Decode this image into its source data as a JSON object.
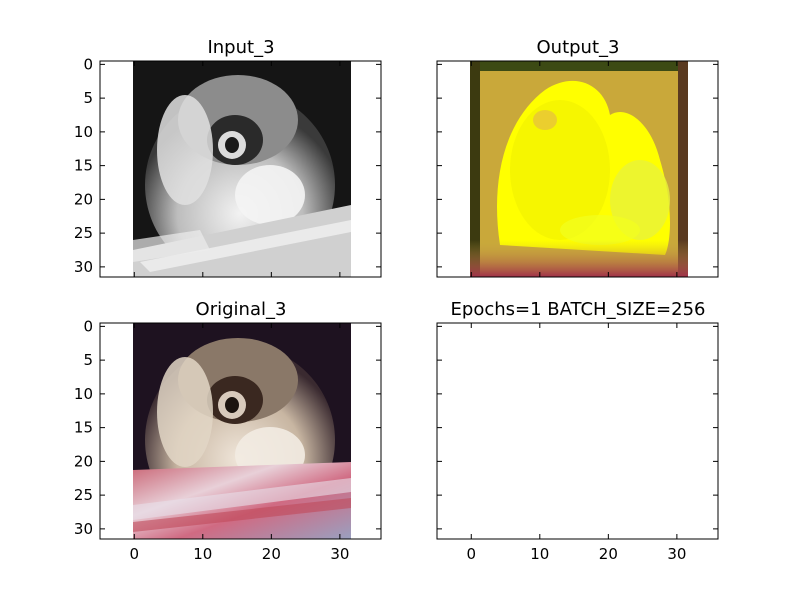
{
  "chart_data": [
    {
      "type": "image",
      "title": "Input_3",
      "xlim": [
        -5,
        36
      ],
      "ylim": [
        31.5,
        -0.5
      ],
      "x_ticks": [],
      "y_ticks": [
        "0",
        "5",
        "10",
        "15",
        "20",
        "25",
        "30"
      ],
      "image_extent": [
        -0.5,
        31.5
      ],
      "colormap": "grayscale"
    },
    {
      "type": "image",
      "title": "Output_3",
      "xlim": [
        -5,
        36
      ],
      "ylim": [
        31.5,
        -0.5
      ],
      "x_ticks": [],
      "y_ticks": [],
      "image_extent": [
        -0.5,
        31.5
      ],
      "colormap": "rgb"
    },
    {
      "type": "image",
      "title": "Original_3",
      "xlim": [
        -5,
        36
      ],
      "ylim": [
        31.5,
        -0.5
      ],
      "x_ticks": [
        "0",
        "10",
        "20",
        "30"
      ],
      "y_ticks": [
        "0",
        "5",
        "10",
        "15",
        "20",
        "25",
        "30"
      ],
      "image_extent": [
        -0.5,
        31.5
      ],
      "colormap": "rgb"
    },
    {
      "type": "empty",
      "title": "Epochs=1 BATCH_SIZE=256",
      "xlim": [
        -5,
        36
      ],
      "ylim": [
        31.5,
        -0.5
      ],
      "x_ticks": [
        "0",
        "10",
        "20",
        "30"
      ],
      "y_ticks": []
    }
  ]
}
